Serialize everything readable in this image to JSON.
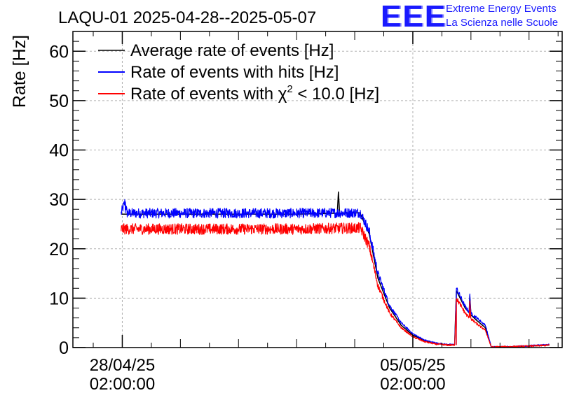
{
  "logo": {
    "mark": "EEE",
    "line1": "Extreme Energy Events",
    "line2": "La Scienza nelle Scuole"
  },
  "chart_data": {
    "type": "line",
    "title": "LAQU-01 2025-04-28--2025-05-07",
    "ylabel": "Rate [Hz]",
    "xlabel": "",
    "ylim": [
      0,
      64
    ],
    "xlim_days": [
      -0.85,
      7.57
    ],
    "yticks": [
      0,
      10,
      20,
      30,
      40,
      50,
      60
    ],
    "xticks": [
      {
        "day": 0,
        "line1": "28/04/25",
        "line2": "02:00:00"
      },
      {
        "day": 5,
        "line1": "05/05/25",
        "line2": "02:00:00"
      }
    ],
    "grid": true,
    "legend_position": "top-left",
    "series": [
      {
        "name": "Average rate of events [Hz]",
        "legend_label": "Average rate of events [Hz]",
        "color": "#000000",
        "points": [
          [
            -0.02,
            27.0
          ],
          [
            0.5,
            27.0
          ],
          [
            1.0,
            27.0
          ],
          [
            2.0,
            27.0
          ],
          [
            3.0,
            27.0
          ],
          [
            3.7,
            27.2
          ],
          [
            3.72,
            31.5
          ],
          [
            3.74,
            27.2
          ],
          [
            4.1,
            27.3
          ],
          [
            4.1,
            27.0
          ],
          [
            4.25,
            23.0
          ],
          [
            4.4,
            14.0
          ],
          [
            4.6,
            8.0
          ],
          [
            4.8,
            4.5
          ],
          [
            5.0,
            2.5
          ],
          [
            5.2,
            1.4
          ],
          [
            5.4,
            0.8
          ],
          [
            5.6,
            0.6
          ],
          [
            5.72,
            0.6
          ],
          [
            5.75,
            11.5
          ],
          [
            5.9,
            8.0
          ],
          [
            5.97,
            7.0
          ],
          [
            5.98,
            10.5
          ],
          [
            6.0,
            6.6
          ],
          [
            6.1,
            5.5
          ],
          [
            6.25,
            4.0
          ],
          [
            6.35,
            0.1
          ],
          [
            6.8,
            0.2
          ],
          [
            7.2,
            0.4
          ],
          [
            7.35,
            0.5
          ]
        ]
      },
      {
        "name": "Rate of events with hits [Hz]",
        "legend_label": "Rate of events with hits [Hz]",
        "color": "#0000ff",
        "noise": 1.0,
        "points": [
          [
            -0.02,
            27.2
          ],
          [
            0.05,
            29.6
          ],
          [
            0.08,
            27.2
          ],
          [
            1.0,
            27.2
          ],
          [
            2.0,
            27.2
          ],
          [
            3.0,
            27.2
          ],
          [
            4.1,
            27.3
          ],
          [
            4.25,
            23.5
          ],
          [
            4.4,
            15.0
          ],
          [
            4.6,
            8.5
          ],
          [
            4.8,
            5.0
          ],
          [
            5.0,
            2.8
          ],
          [
            5.2,
            1.5
          ],
          [
            5.4,
            0.9
          ],
          [
            5.6,
            0.6
          ],
          [
            5.72,
            0.6
          ],
          [
            5.75,
            12.0
          ],
          [
            5.9,
            8.3
          ],
          [
            5.97,
            7.2
          ],
          [
            5.98,
            10.8
          ],
          [
            6.0,
            6.9
          ],
          [
            6.1,
            6.0
          ],
          [
            6.25,
            4.5
          ],
          [
            6.35,
            0.1
          ],
          [
            6.8,
            0.2
          ],
          [
            7.2,
            0.5
          ],
          [
            7.35,
            0.6
          ]
        ]
      },
      {
        "name": "Rate of events with chi2 < 10.0 [Hz]",
        "legend_label": "Rate of events with",
        "legend_symbol": "χ",
        "legend_exp": "2",
        "legend_rest": " < 10.0 [Hz]",
        "color": "#ff0000",
        "noise": 1.1,
        "points": [
          [
            -0.02,
            24.0
          ],
          [
            1.0,
            24.0
          ],
          [
            2.0,
            24.0
          ],
          [
            3.0,
            24.0
          ],
          [
            4.1,
            24.2
          ],
          [
            4.25,
            20.5
          ],
          [
            4.4,
            12.5
          ],
          [
            4.6,
            7.0
          ],
          [
            4.8,
            4.0
          ],
          [
            5.0,
            2.2
          ],
          [
            5.2,
            1.2
          ],
          [
            5.4,
            0.7
          ],
          [
            5.6,
            0.5
          ],
          [
            5.72,
            0.5
          ],
          [
            5.75,
            10.0
          ],
          [
            5.9,
            7.0
          ],
          [
            5.97,
            6.0
          ],
          [
            5.98,
            9.5
          ],
          [
            6.0,
            5.8
          ],
          [
            6.1,
            4.8
          ],
          [
            6.25,
            3.5
          ],
          [
            6.35,
            0.1
          ],
          [
            6.8,
            0.2
          ],
          [
            7.2,
            0.4
          ],
          [
            7.35,
            0.5
          ]
        ]
      }
    ]
  }
}
